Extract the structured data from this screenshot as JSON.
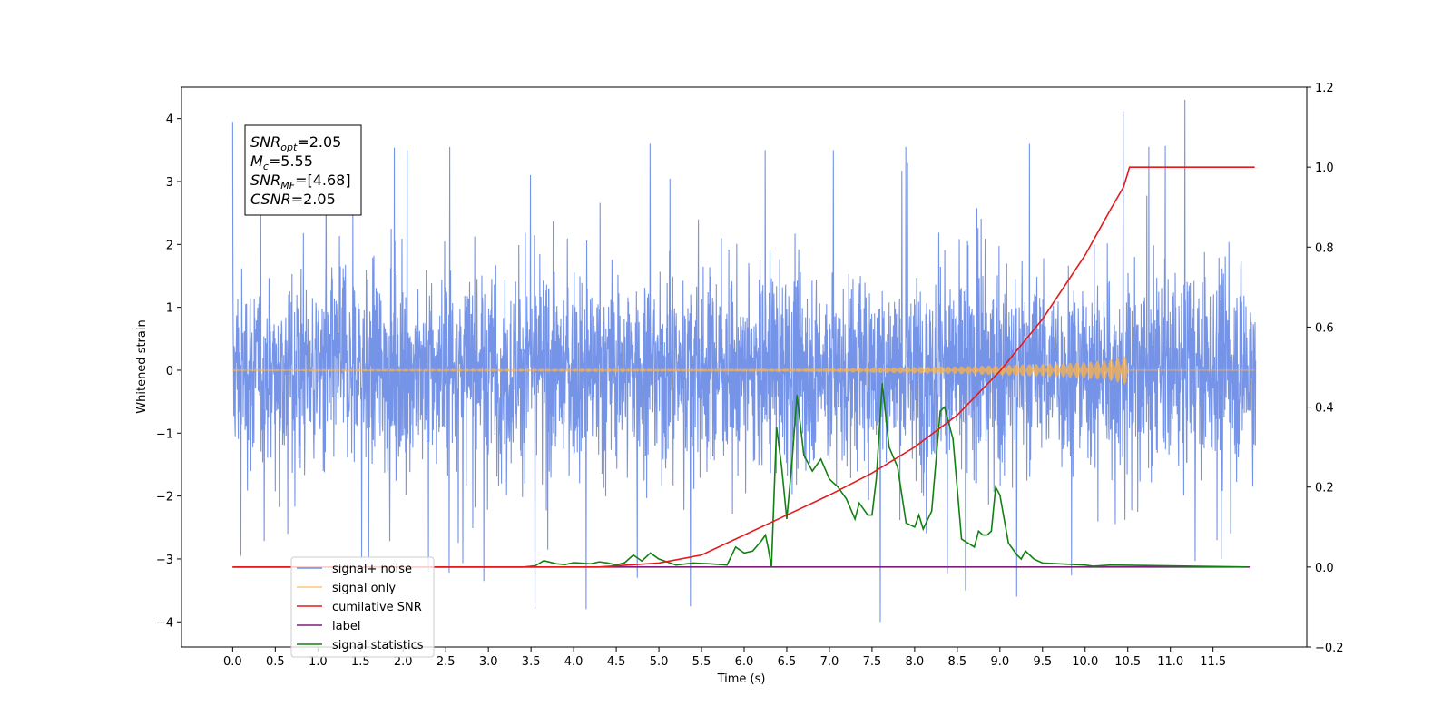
{
  "chart_data": {
    "type": "line",
    "xlabel": "Time (s)",
    "ylabel": "Whitened strain",
    "xlim": [
      -0.6,
      12.6
    ],
    "ylim": [
      -4.4,
      4.5
    ],
    "y2lim": [
      -0.2,
      1.2
    ],
    "x_ticks": [
      0.0,
      0.5,
      1.0,
      1.5,
      2.0,
      2.5,
      3.0,
      3.5,
      4.0,
      4.5,
      5.0,
      5.5,
      6.0,
      6.5,
      7.0,
      7.5,
      8.0,
      8.5,
      9.0,
      9.5,
      10.0,
      10.5,
      11.0,
      11.5
    ],
    "x_tick_labels": [
      "0.0",
      "0.5",
      "1.0",
      "1.5",
      "2.0",
      "2.5",
      "3.0",
      "3.5",
      "4.0",
      "4.5",
      "5.0",
      "5.5",
      "6.0",
      "6.5",
      "7.0",
      "7.5",
      "8.0",
      "8.5",
      "9.0",
      "9.5",
      "10.0",
      "10.5",
      "11.0",
      "11.5"
    ],
    "y_ticks": [
      -4,
      -3,
      -2,
      -1,
      0,
      1,
      2,
      3,
      4
    ],
    "y_tick_labels": [
      "−4",
      "−3",
      "−2",
      "−1",
      "0",
      "1",
      "2",
      "3",
      "4"
    ],
    "y2_ticks": [
      -0.2,
      0.0,
      0.2,
      0.4,
      0.6,
      0.8,
      1.0,
      1.2
    ],
    "y2_tick_labels": [
      "−0.2",
      "0.0",
      "0.2",
      "0.4",
      "0.6",
      "0.8",
      "1.0",
      "1.2"
    ],
    "grid": false,
    "legend_position": "bottom-left",
    "annotation": [
      {
        "main": "SNR",
        "sub": "opt",
        "value": "=2.05"
      },
      {
        "main": "M",
        "sub": "c",
        "value": "=5.55"
      },
      {
        "main": "SNR",
        "sub": "MF",
        "value": "=[4.68]"
      },
      {
        "main": "CSNR",
        "sub": "",
        "value": "=2.05"
      }
    ],
    "noise_spikes": [
      [
        0.0,
        3.95
      ],
      [
        0.1,
        -2.95
      ],
      [
        0.65,
        -2.6
      ],
      [
        1.1,
        3.3
      ],
      [
        1.6,
        -3.0
      ],
      [
        2.05,
        3.5
      ],
      [
        2.3,
        -3.2
      ],
      [
        2.55,
        3.55
      ],
      [
        2.95,
        -3.35
      ],
      [
        3.55,
        -3.8
      ],
      [
        4.15,
        -3.8
      ],
      [
        4.9,
        3.6
      ],
      [
        4.75,
        -3.3
      ],
      [
        6.25,
        3.5
      ],
      [
        7.05,
        3.5
      ],
      [
        7.6,
        -4.0
      ],
      [
        7.9,
        3.55
      ],
      [
        8.6,
        -3.5
      ],
      [
        9.2,
        -3.6
      ],
      [
        9.35,
        3.6
      ],
      [
        10.45,
        4.12
      ],
      [
        10.75,
        3.55
      ],
      [
        11.6,
        -3.0
      ]
    ],
    "series": [
      {
        "name": "signal+ noise",
        "axis": "left",
        "color": "#6f8ee6",
        "description_of_shape": "dense whitened noise, approx zero mean, amplitude ~1.5, spikes to ~4",
        "x_range": [
          0.0,
          12.0
        ]
      },
      {
        "name": "signal only",
        "axis": "left",
        "color": "#ffb347",
        "x": [
          0.0,
          4.0,
          5.0,
          6.0,
          7.0,
          8.0,
          8.5,
          9.0,
          9.5,
          10.0,
          10.3,
          10.45,
          10.5
        ],
        "envelope": [
          0.005,
          0.01,
          0.015,
          0.02,
          0.03,
          0.05,
          0.06,
          0.08,
          0.1,
          0.13,
          0.17,
          0.22,
          0.25
        ]
      },
      {
        "name": "cumilative SNR",
        "axis": "right",
        "color": "#e41a1c",
        "x": [
          0.0,
          4.3,
          5.0,
          5.5,
          6.0,
          6.5,
          7.0,
          7.5,
          8.0,
          8.5,
          9.0,
          9.5,
          10.0,
          10.3,
          10.45,
          10.5,
          10.52,
          11.99
        ],
        "values": [
          0.0,
          0.0,
          0.01,
          0.03,
          0.08,
          0.13,
          0.18,
          0.235,
          0.3,
          0.38,
          0.49,
          0.62,
          0.78,
          0.895,
          0.95,
          0.985,
          1.0,
          1.0
        ]
      },
      {
        "name": "label",
        "axis": "right",
        "color": "#7b1f7b",
        "x": [
          0.0,
          11.93
        ],
        "values": [
          0.0,
          0.0
        ]
      },
      {
        "name": "signal statistics",
        "axis": "right",
        "color": "#138013",
        "x": [
          0.0,
          3.4,
          3.55,
          3.65,
          3.8,
          3.9,
          4.0,
          4.2,
          4.3,
          4.4,
          4.5,
          4.6,
          4.7,
          4.8,
          4.9,
          5.0,
          5.2,
          5.4,
          5.6,
          5.8,
          5.9,
          6.0,
          6.1,
          6.2,
          6.25,
          6.28,
          6.32,
          6.38,
          6.44,
          6.5,
          6.56,
          6.62,
          6.7,
          6.8,
          6.9,
          7.0,
          7.1,
          7.2,
          7.3,
          7.35,
          7.45,
          7.5,
          7.55,
          7.62,
          7.7,
          7.8,
          7.9,
          8.0,
          8.05,
          8.1,
          8.2,
          8.3,
          8.35,
          8.45,
          8.55,
          8.7,
          8.75,
          8.8,
          8.85,
          8.9,
          8.95,
          9.0,
          9.1,
          9.2,
          9.25,
          9.3,
          9.4,
          9.5,
          10.0,
          10.1,
          10.3,
          11.9
        ],
        "values": [
          0.0,
          0.0,
          0.003,
          0.016,
          0.008,
          0.006,
          0.011,
          0.008,
          0.013,
          0.01,
          0.005,
          0.011,
          0.03,
          0.015,
          0.035,
          0.02,
          0.005,
          0.01,
          0.008,
          0.005,
          0.05,
          0.035,
          0.04,
          0.065,
          0.08,
          0.05,
          0.0,
          0.35,
          0.25,
          0.12,
          0.26,
          0.43,
          0.28,
          0.24,
          0.27,
          0.22,
          0.2,
          0.17,
          0.12,
          0.16,
          0.13,
          0.13,
          0.22,
          0.46,
          0.3,
          0.25,
          0.11,
          0.1,
          0.13,
          0.095,
          0.14,
          0.39,
          0.4,
          0.32,
          0.07,
          0.05,
          0.09,
          0.08,
          0.08,
          0.09,
          0.2,
          0.18,
          0.06,
          0.03,
          0.02,
          0.04,
          0.02,
          0.01,
          0.005,
          0.002,
          0.005,
          0.0
        ]
      }
    ]
  }
}
